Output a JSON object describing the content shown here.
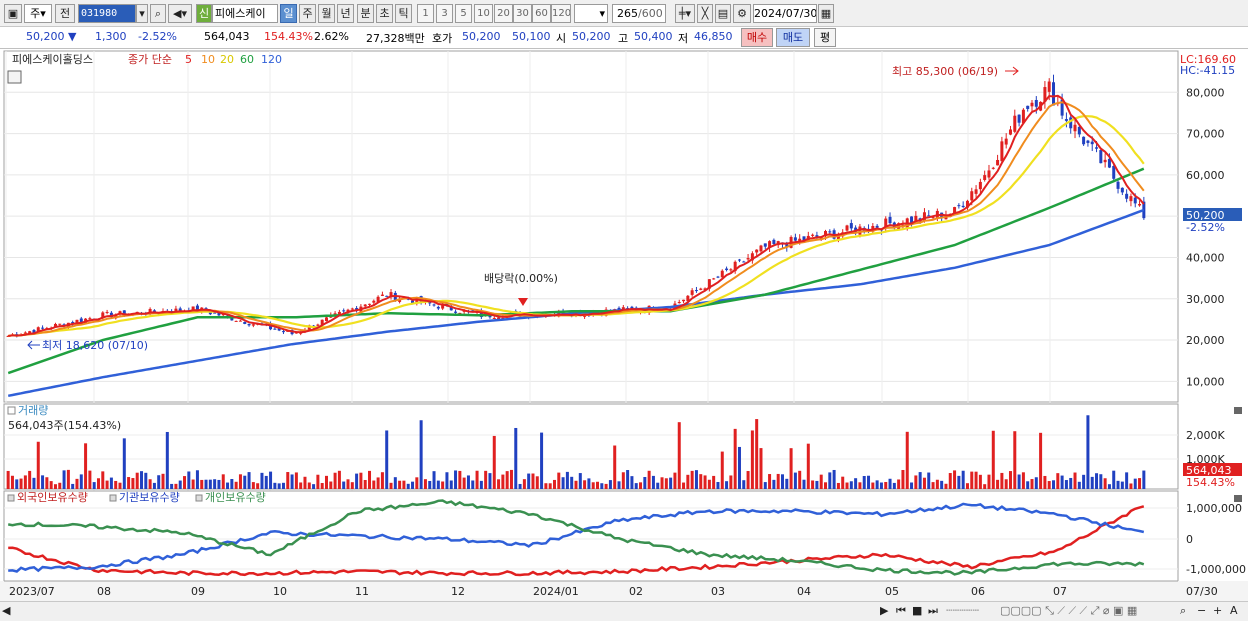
{
  "toolbar": {
    "market_type": "주",
    "prev_label": "전",
    "code": "031980",
    "new_badge": "신",
    "name": "피에스케이",
    "periods": [
      "일",
      "주",
      "월",
      "년",
      "분",
      "초",
      "틱"
    ],
    "intervals": [
      "1",
      "3",
      "5",
      "10",
      "20",
      "30",
      "60",
      "120"
    ],
    "count": "265",
    "count_total": "/600",
    "date": "2024/07/30"
  },
  "info": {
    "price": "50,200 ▼",
    "change": "1,300",
    "change_pct": "-2.52%",
    "volume": "564,043",
    "volume_ratio": "154.43%",
    "turnover": "2.62%",
    "amount": "27,328백만",
    "bid_label": "호가",
    "bid1": "50,200",
    "bid2": "50,100",
    "open_label": "시",
    "open": "50,200",
    "high_label": "고",
    "high": "50,400",
    "low_label": "저",
    "low": "46,850",
    "buy": "매수",
    "sell": "매도",
    "avg": "평"
  },
  "price_panel": {
    "stock_label": "피에스케이홀딩스",
    "ma_title": "종가 단순",
    "ma_periods": [
      "5",
      "10",
      "20",
      "60",
      "120"
    ],
    "lc": "LC:169.60",
    "hc": "HC:-41.15",
    "y_ticks": [
      "80,000",
      "70,000",
      "60,000",
      "50,000",
      "40,000",
      "30,000",
      "20,000",
      "10,000"
    ],
    "max_label": "최고 85,300 (06/19)",
    "min_label": "최저 18,620 (07/10)",
    "dividend_label": "배당락(0.00%)",
    "current_price": "50,200",
    "current_pct": "-2.52%"
  },
  "volume_panel": {
    "title": "거래량",
    "value": "564,043주(154.43%)",
    "y_ticks": [
      "2,000K",
      "1,000K"
    ],
    "current": "564,043",
    "current_pct": "154.43%"
  },
  "holding_panel": {
    "legend": [
      "외국인보유수량",
      "기관보유수량",
      "개인보유수량"
    ],
    "y_ticks": [
      "1,000,000",
      "0",
      "-1,000,000"
    ]
  },
  "x_axis": {
    "labels": [
      "2023/07",
      "08",
      "09",
      "10",
      "11",
      "12",
      "2024/01",
      "02",
      "03",
      "04",
      "05",
      "06",
      "07"
    ],
    "right_label": "07/30"
  },
  "colors": {
    "up": "#e02020",
    "down": "#2040c0",
    "ma5": "#e02020",
    "ma10": "#f08c1e",
    "ma20": "#f0e020",
    "ma60": "#20a040",
    "ma120": "#3060d8",
    "foreign": "#e02020",
    "institution": "#3060d8",
    "individual": "#3a9050"
  },
  "chart_data": {
    "type": "candlestick",
    "x_unit": "month",
    "x": [
      "2023/07",
      "2023/08",
      "2023/09",
      "2023/10",
      "2023/11",
      "2023/12",
      "2024/01",
      "2024/02",
      "2024/03",
      "2024/04",
      "2024/05",
      "2024/06",
      "2024/07"
    ],
    "close_approx": [
      21000,
      26000,
      27500,
      21500,
      31000,
      26000,
      26500,
      28000,
      42500,
      47000,
      51000,
      79000,
      50200
    ],
    "ma60_approx": [
      12000,
      20000,
      25500,
      25500,
      26500,
      26000,
      27000,
      27000,
      31000,
      37000,
      43000,
      52000,
      61500
    ],
    "ma120_approx": [
      6500,
      11000,
      15000,
      19000,
      22000,
      24500,
      26500,
      28000,
      31000,
      33500,
      37500,
      43000,
      51500
    ],
    "ylim": [
      5000,
      90000
    ]
  }
}
